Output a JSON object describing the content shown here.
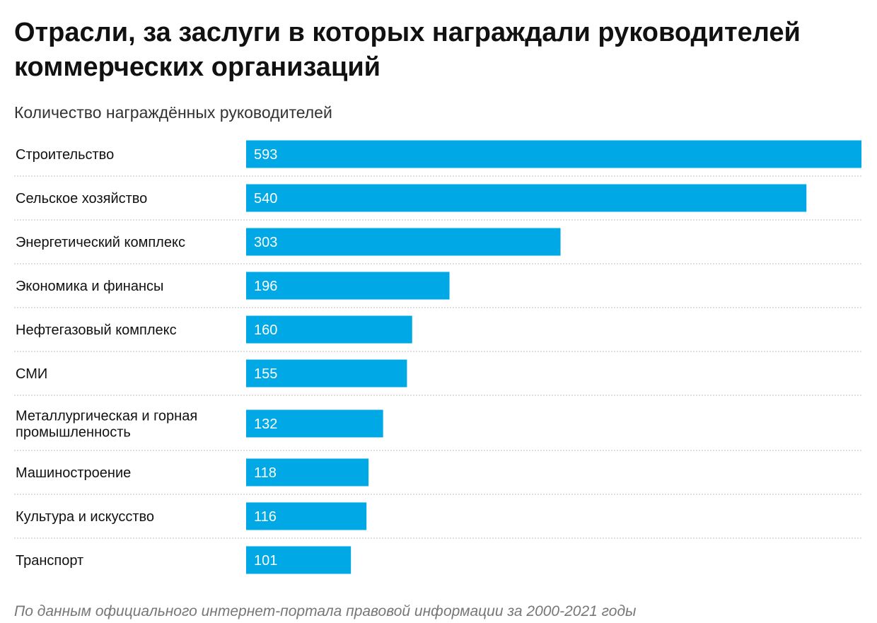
{
  "chart_data": {
    "type": "bar",
    "orientation": "horizontal",
    "title": "Отрасли, за заслуги в которых награждали руководителей коммерческих организаций",
    "subtitle": "Количество награждённых руководителей",
    "categories": [
      [
        "Строительство"
      ],
      [
        "Сельское хозяйство"
      ],
      [
        "Энергетический комплекс"
      ],
      [
        "Экономика и финансы"
      ],
      [
        "Нефтегазовый комплекс"
      ],
      [
        "СМИ"
      ],
      [
        "Металлургическая и горная",
        "промышленность"
      ],
      [
        "Машиностроение"
      ],
      [
        "Культура и искусство"
      ],
      [
        "Транспорт"
      ]
    ],
    "values": [
      593,
      540,
      303,
      196,
      160,
      155,
      132,
      118,
      116,
      101
    ],
    "xlim": [
      0,
      593
    ],
    "grid": false,
    "bar_color": "#00a9e6",
    "separator_color": "#cccccc"
  },
  "source": "По данным официального интернет-портала правовой информации за 2000-2021 годы"
}
